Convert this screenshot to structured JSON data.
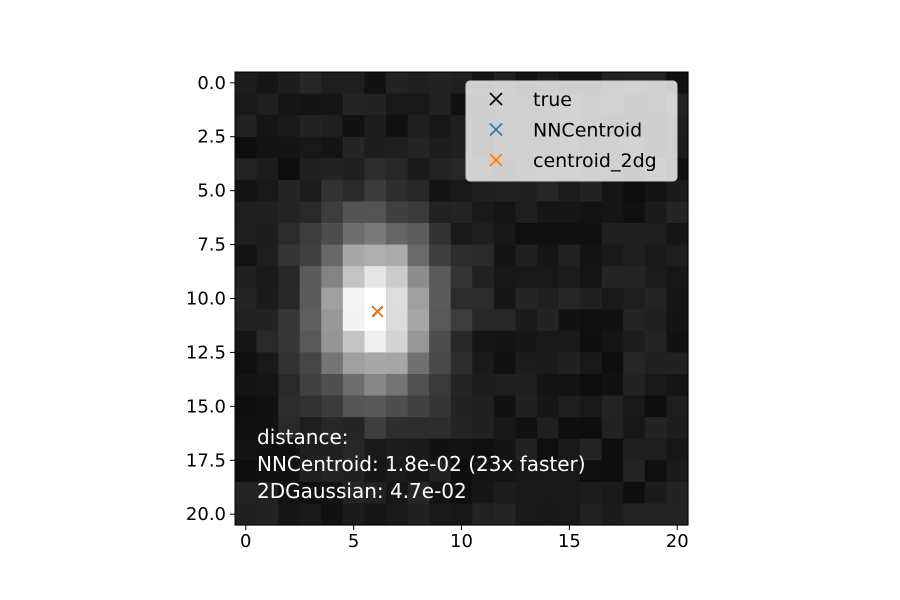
{
  "chart_data": {
    "type": "heatmap",
    "colormap": "gray",
    "grid": false,
    "x_ticks": [
      "0",
      "5",
      "10",
      "15",
      "20"
    ],
    "y_ticks": [
      "0.0",
      "2.5",
      "5.0",
      "7.5",
      "10.0",
      "12.5",
      "15.0",
      "17.5",
      "20.0"
    ],
    "xlim": [
      -0.5,
      20.5
    ],
    "ylim": [
      20.5,
      -0.5
    ],
    "pixel_grid_size": 21,
    "source": {
      "center_x": 6.0,
      "center_y": 10.5,
      "sigma_x": 1.9,
      "sigma_y": 2.6,
      "peak": 0.95,
      "background": 0.1,
      "noise": 0.05
    },
    "markers": [
      {
        "label": "true",
        "x": 6.1,
        "y": 10.6,
        "color": "#000000",
        "symbol": "x"
      },
      {
        "label": "NNCentroid",
        "x": 6.11,
        "y": 10.6,
        "color": "#1f77b4",
        "symbol": "x"
      },
      {
        "label": "centroid_2dg",
        "x": 6.12,
        "y": 10.62,
        "color": "#ff7f0e",
        "symbol": "x"
      }
    ],
    "legend": {
      "placement": "top-right",
      "entries": [
        {
          "label": "true",
          "color": "#000000"
        },
        {
          "label": "NNCentroid",
          "color": "#1f77b4"
        },
        {
          "label": "centroid_2dg",
          "color": "#ff7f0e"
        }
      ]
    },
    "annotation": {
      "color": "#ffffff",
      "lines": [
        "distance:",
        "NNCentroid: 1.8e-02 (23x faster)",
        "2DGaussian: 4.7e-02"
      ]
    }
  }
}
